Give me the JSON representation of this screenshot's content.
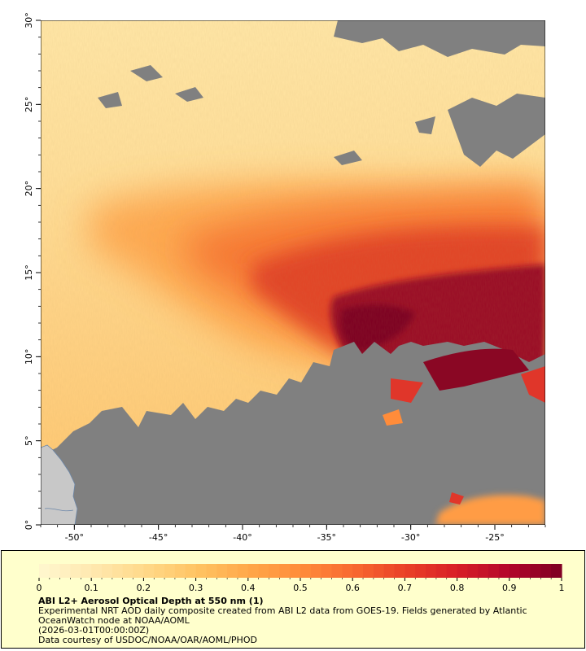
{
  "map": {
    "lon_range": [
      -52,
      -22
    ],
    "lat_range": [
      0,
      30
    ],
    "lon_ticks": [
      "-50°",
      "-45°",
      "-40°",
      "-35°",
      "-30°",
      "-25°"
    ],
    "lat_ticks": [
      "0°",
      "5°",
      "10°",
      "15°",
      "20°",
      "25°",
      "30°"
    ],
    "colors": {
      "no_data": "#808080",
      "land": "#c8c8c8",
      "low": "#fff2c0",
      "high": "#7a0020"
    }
  },
  "legend": {
    "range": [
      0,
      1
    ],
    "tick_labels": [
      "0",
      "0.1",
      "0.2",
      "0.3",
      "0.4",
      "0.5",
      "0.6",
      "0.7",
      "0.8",
      "0.9",
      "1"
    ],
    "palette": [
      "#fff7cf",
      "#ffe9b0",
      "#ffd98a",
      "#ffc463",
      "#ffa849",
      "#ff8c3a",
      "#f86a30",
      "#ea4127",
      "#d81f27",
      "#b3062b",
      "#7d0023"
    ]
  },
  "caption": {
    "title": "ABI L2+ Aerosol Optical Depth at 550 nm (1)",
    "description": "Experimental NRT AOD daily composite created from ABI L2 data from GOES-19. Fields generated by Atlantic OceanWatch node at NOAA/AOML",
    "timestamp": "(2026-03-01T00:00:00Z)",
    "credit": "Data courtesy of USDOC/NOAA/OAR/AOML/PHOD"
  }
}
